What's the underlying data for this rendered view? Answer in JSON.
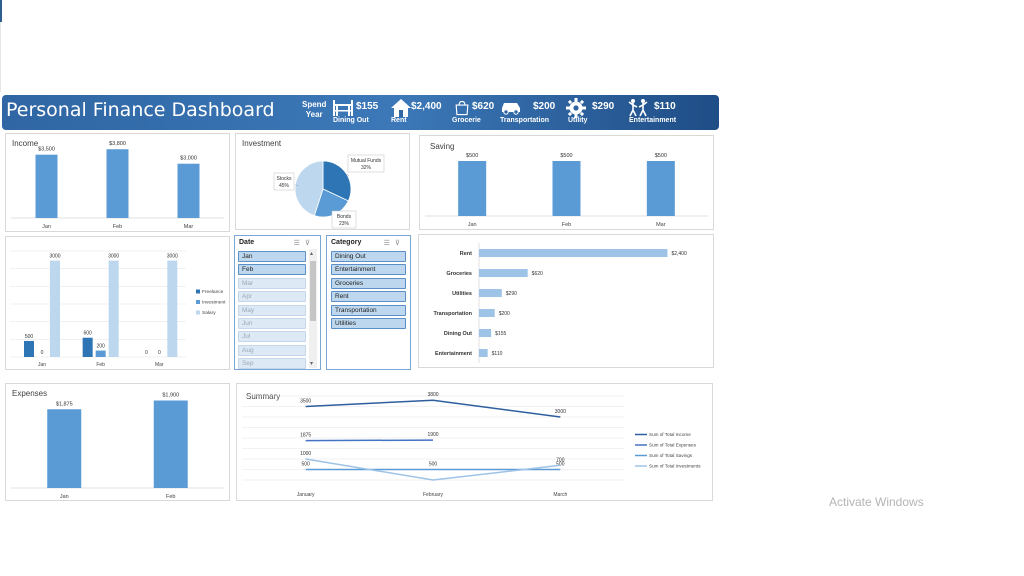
{
  "header": {
    "title": "Personal Finance Dashboard",
    "spend_label_1": "Spend",
    "spend_label_2": "Year",
    "kpis": [
      {
        "label": "Dining Out",
        "value": "$155",
        "icon": "dining-icon"
      },
      {
        "label": "Rent",
        "value": "$2,400",
        "icon": "house-icon"
      },
      {
        "label": "Grocerie",
        "value": "$620",
        "icon": "shopping-bag-icon"
      },
      {
        "label": "Transportation",
        "value": "$200",
        "icon": "car-icon"
      },
      {
        "label": "Utility",
        "value": "$290",
        "icon": "gear-icon"
      },
      {
        "label": "Entertainment",
        "value": "$110",
        "icon": "people-dancing-icon"
      }
    ],
    "accent_color": "#2f66a3"
  },
  "chart_data": [
    {
      "id": "income",
      "type": "bar",
      "title": "Income",
      "categories": [
        "Jan",
        "Feb",
        "Mar"
      ],
      "values": [
        3500,
        3800,
        3000
      ],
      "data_labels": [
        "$3,500",
        "$3,800",
        "$3,000"
      ],
      "ylim": [
        0,
        4200
      ],
      "color": "#5b9bd5"
    },
    {
      "id": "investment",
      "type": "pie",
      "title": "Investment",
      "slices": [
        {
          "label": "Mutual Funds",
          "value": 32,
          "pct": "32%",
          "color": "#2e75b6"
        },
        {
          "label": "Bonds",
          "value": 23,
          "pct": "23%",
          "color": "#5b9bd5"
        },
        {
          "label": "Stocks",
          "value": 45,
          "pct": "45%",
          "color": "#bdd7ee"
        }
      ]
    },
    {
      "id": "saving",
      "type": "bar",
      "title": "Saving",
      "categories": [
        "Jan",
        "Feb",
        "Mar"
      ],
      "values": [
        500,
        500,
        500
      ],
      "data_labels": [
        "$500",
        "$500",
        "$500"
      ],
      "ylim": [
        0,
        600
      ],
      "color": "#5b9bd5"
    },
    {
      "id": "income-sources",
      "type": "bar",
      "title": "",
      "categories": [
        "Jan",
        "Feb",
        "Mar"
      ],
      "series": [
        {
          "name": "Freelance",
          "values": [
            500,
            600,
            0
          ],
          "labels": [
            "500",
            "600",
            "0"
          ],
          "color": "#2e75b6"
        },
        {
          "name": "Investment",
          "values": [
            0,
            200,
            0
          ],
          "labels": [
            "0",
            "200",
            "0"
          ],
          "color": "#5b9bd5"
        },
        {
          "name": "Salary",
          "values": [
            3000,
            3000,
            3000
          ],
          "labels": [
            "3000",
            "3000",
            "3000"
          ],
          "color": "#bdd7ee"
        }
      ],
      "ylim": [
        0,
        3300
      ],
      "legend": "right"
    },
    {
      "id": "category-spend",
      "type": "bar",
      "orientation": "horizontal",
      "title": "",
      "categories": [
        "Rent",
        "Groceries",
        "Utilities",
        "Transportation",
        "Dining Out",
        "Entertainment"
      ],
      "values": [
        2400,
        620,
        290,
        200,
        155,
        110
      ],
      "data_labels": [
        "$2,400",
        "$620",
        "$290",
        "$200",
        "$155",
        "$110"
      ],
      "xlim": [
        0,
        2700
      ],
      "color": "#9dc3e6"
    },
    {
      "id": "expenses",
      "type": "bar",
      "title": "Expenses",
      "categories": [
        "Jan",
        "Feb"
      ],
      "values": [
        1875,
        1900
      ],
      "data_labels": [
        "$1,875",
        "$1,900"
      ],
      "ylim": [
        1650,
        1930
      ],
      "color": "#5b9bd5"
    },
    {
      "id": "summary",
      "type": "line",
      "title": "Summary",
      "categories": [
        "January",
        "February",
        "March"
      ],
      "series": [
        {
          "name": "Sum of Total Income",
          "values": [
            3500,
            3800,
            3000
          ],
          "labels": [
            "3500",
            "3800",
            "3000"
          ],
          "color": "#2e5e9e"
        },
        {
          "name": "Sum of Total Expenses",
          "values": [
            1875,
            1900,
            null
          ],
          "labels": [
            "1875",
            "1900",
            ""
          ],
          "color": "#4472c4"
        },
        {
          "name": "Sum of Total Savings",
          "values": [
            500,
            500,
            500
          ],
          "labels": [
            "500",
            "500",
            "500"
          ],
          "color": "#5b9bd5"
        },
        {
          "name": "Sum of Total Investments",
          "values": [
            1000,
            0,
            700
          ],
          "labels": [
            "1000",
            "",
            "700"
          ],
          "color": "#9dc3e6"
        }
      ],
      "ylim": [
        0,
        4000
      ],
      "legend": "right"
    }
  ],
  "slicers": {
    "date": {
      "title": "Date",
      "items": [
        {
          "label": "Jan",
          "selected": true
        },
        {
          "label": "Feb",
          "selected": true
        },
        {
          "label": "Mar",
          "selected": false
        },
        {
          "label": "Apr",
          "selected": false
        },
        {
          "label": "May",
          "selected": false
        },
        {
          "label": "Jun",
          "selected": false
        },
        {
          "label": "Jul",
          "selected": false
        },
        {
          "label": "Aug",
          "selected": false
        },
        {
          "label": "Sep",
          "selected": false
        }
      ]
    },
    "category": {
      "title": "Category",
      "items": [
        {
          "label": "Dining Out",
          "selected": true
        },
        {
          "label": "Entertainment",
          "selected": true
        },
        {
          "label": "Groceries",
          "selected": true
        },
        {
          "label": "Rent",
          "selected": true
        },
        {
          "label": "Transportation",
          "selected": true
        },
        {
          "label": "Utilities",
          "selected": true
        }
      ]
    }
  },
  "watermark": "Activate Windows"
}
